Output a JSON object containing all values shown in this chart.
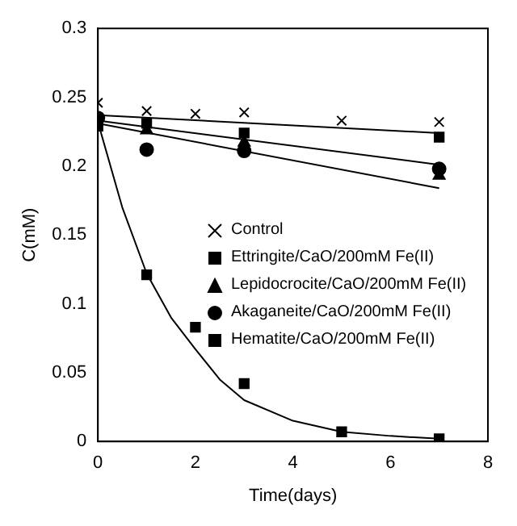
{
  "chart_data": {
    "type": "scatter",
    "xlabel": "Time(days)",
    "ylabel": "C(mM)",
    "xlim": [
      0,
      8
    ],
    "xticks": [
      0,
      2,
      4,
      6,
      8
    ],
    "ylim": [
      0,
      0.3
    ],
    "yticks": [
      0,
      0.05,
      0.1,
      0.15,
      0.2,
      0.25,
      0.3
    ],
    "legend": "right",
    "series": [
      {
        "name": "Control",
        "marker": "cross",
        "color": "#000000",
        "x": [
          0,
          1,
          2,
          3,
          5,
          7
        ],
        "values": [
          0.246,
          0.24,
          0.238,
          0.239,
          0.233,
          0.232
        ]
      },
      {
        "name": "Ettringite/CaO/200mM Fe(II)",
        "marker": "square",
        "color": "#000000",
        "x": [
          1,
          3,
          7
        ],
        "values": [
          0.231,
          0.224,
          0.221
        ]
      },
      {
        "name": "Lepidocrocite/CaO/200mM Fe(II)",
        "marker": "triangle",
        "color": "#000000",
        "x": [
          1,
          3,
          7
        ],
        "values": [
          0.226,
          0.217,
          0.193
        ]
      },
      {
        "name": "Akaganeite/CaO/200mM Fe(II)",
        "marker": "circle",
        "color": "#000000",
        "x": [
          0,
          1,
          3,
          7
        ],
        "values": [
          0.235,
          0.212,
          0.211,
          0.198
        ]
      },
      {
        "name": "Hematite/CaO/200mM Fe(II)",
        "marker": "square",
        "color": "#000000",
        "x": [
          0,
          1,
          2,
          3,
          5,
          7
        ],
        "values": [
          0.229,
          0.121,
          0.083,
          0.042,
          0.007,
          0.002
        ]
      },
      {
        "type": "line",
        "marker": "none",
        "color": "#000000",
        "x": [
          0,
          7
        ],
        "values": [
          0.237,
          0.224
        ]
      },
      {
        "type": "line",
        "marker": "none",
        "color": "#000000",
        "x": [
          0,
          7
        ],
        "values": [
          0.233,
          0.201
        ]
      },
      {
        "type": "line",
        "marker": "none",
        "color": "#000000",
        "x": [
          0,
          7
        ],
        "values": [
          0.231,
          0.184
        ]
      },
      {
        "type": "line",
        "marker": "none",
        "color": "#000000",
        "x": [
          0,
          0.5,
          1,
          1.5,
          2,
          2.5,
          3,
          4,
          5,
          6,
          7
        ],
        "values": [
          0.232,
          0.17,
          0.122,
          0.09,
          0.067,
          0.045,
          0.03,
          0.015,
          0.007,
          0.004,
          0.002
        ]
      }
    ]
  }
}
